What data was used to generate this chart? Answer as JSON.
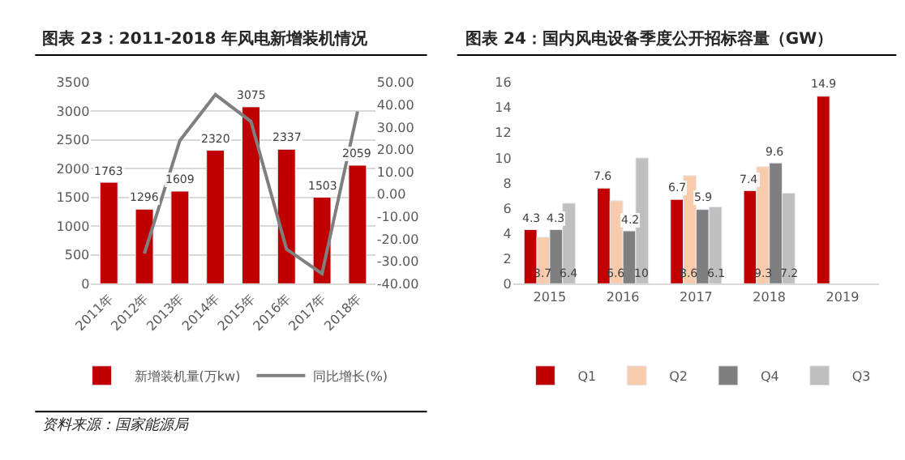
{
  "chart_data": [
    {
      "type": "bar",
      "title": "图表 23：2011-2018 年风电新增装机情况",
      "categories": [
        "2011年",
        "2012年",
        "2013年",
        "2014年",
        "2015年",
        "2016年",
        "2017年",
        "2018年"
      ],
      "series": [
        {
          "name": "新增装机量(万kw)",
          "color": "#c00000",
          "values": [
            1763,
            1296,
            1609,
            2320,
            3075,
            2337,
            1503,
            2059
          ]
        },
        {
          "name": "同比增长(%)",
          "type": "line",
          "axis": "y2",
          "color": "#7f7f7f",
          "values": [
            null,
            -26.5,
            24,
            44.5,
            32.5,
            -24.5,
            -35.5,
            37
          ]
        }
      ],
      "ylim": [
        0,
        3500
      ],
      "yticks": [
        0,
        500,
        1000,
        1500,
        2000,
        2500,
        3000,
        3500
      ],
      "y2lim": [
        -40,
        50
      ],
      "y2ticks": [
        {
          "value": -40,
          "label": "-40.00"
        },
        {
          "value": -30,
          "label": "-30.00"
        },
        {
          "value": -20,
          "label": "-20.00"
        },
        {
          "value": -10,
          "label": "-10.00"
        },
        {
          "value": 0,
          "label": "0.00"
        },
        {
          "value": 10,
          "label": "10.00"
        },
        {
          "value": 20,
          "label": "20.00"
        },
        {
          "value": 30,
          "label": "30.00"
        },
        {
          "value": 40,
          "label": "40.00"
        },
        {
          "value": 50,
          "label": "50.00"
        }
      ],
      "grid": "y",
      "legend": "bottom",
      "marker": "none",
      "line_style": "solid",
      "value_labels": [
        [
          "1763",
          "1296",
          "1609",
          "2320",
          "3075",
          "2337",
          "1503",
          "2059"
        ],
        null
      ],
      "annotations": [
        "资料来源：国家能源局"
      ]
    },
    {
      "type": "bar",
      "title": "图表 24：国内风电设备季度公开招标容量（GW）",
      "categories": [
        "2015",
        "2016",
        "2017",
        "2018",
        "2019"
      ],
      "series": [
        {
          "name": "Q1",
          "color": "#c00000",
          "values": [
            4.3,
            7.6,
            6.7,
            7.4,
            14.9
          ]
        },
        {
          "name": "Q2",
          "color": "#f8cbad",
          "values": [
            3.7,
            6.6,
            8.6,
            9.3,
            null
          ]
        },
        {
          "name": "Q4",
          "color": "#7f7f7f",
          "values": [
            4.3,
            4.2,
            5.9,
            9.6,
            null
          ]
        },
        {
          "name": "Q3",
          "color": "#bfbfbf",
          "values": [
            6.4,
            10,
            6.1,
            7.2,
            null
          ]
        }
      ],
      "ylim": [
        0,
        16
      ],
      "yticks": [
        0,
        2,
        4,
        6,
        8,
        10,
        12,
        14,
        16
      ],
      "grid": false,
      "legend": "bottom",
      "data_labels": true
    }
  ]
}
